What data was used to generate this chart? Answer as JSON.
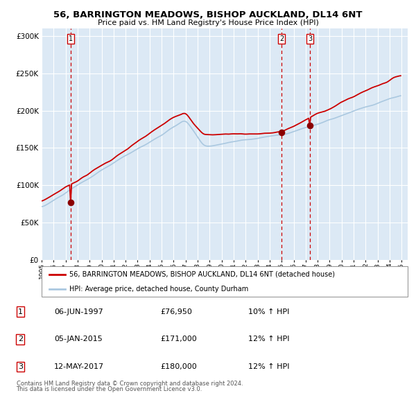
{
  "title": "56, BARRINGTON MEADOWS, BISHOP AUCKLAND, DL14 6NT",
  "subtitle": "Price paid vs. HM Land Registry's House Price Index (HPI)",
  "legend_line1": "56, BARRINGTON MEADOWS, BISHOP AUCKLAND, DL14 6NT (detached house)",
  "legend_line2": "HPI: Average price, detached house, County Durham",
  "sale1_date": "06-JUN-1997",
  "sale1_price": "£76,950",
  "sale1_hpi": "10% ↑ HPI",
  "sale2_date": "05-JAN-2015",
  "sale2_price": "£171,000",
  "sale2_hpi": "12% ↑ HPI",
  "sale3_date": "12-MAY-2017",
  "sale3_price": "£180,000",
  "sale3_hpi": "12% ↑ HPI",
  "footnote1": "Contains HM Land Registry data © Crown copyright and database right 2024.",
  "footnote2": "This data is licensed under the Open Government Licence v3.0.",
  "background_color": "#dce9f5",
  "hpi_line_color": "#aac8e0",
  "price_line_color": "#cc0000",
  "marker_color": "#8b0000",
  "dashed_line_color": "#cc0000",
  "sale1_year": 1997.44,
  "sale2_year": 2015.01,
  "sale3_year": 2017.36,
  "sale1_value": 76950,
  "sale2_value": 171000,
  "sale3_value": 180000,
  "ylim_max": 310000,
  "ylim_min": 0
}
